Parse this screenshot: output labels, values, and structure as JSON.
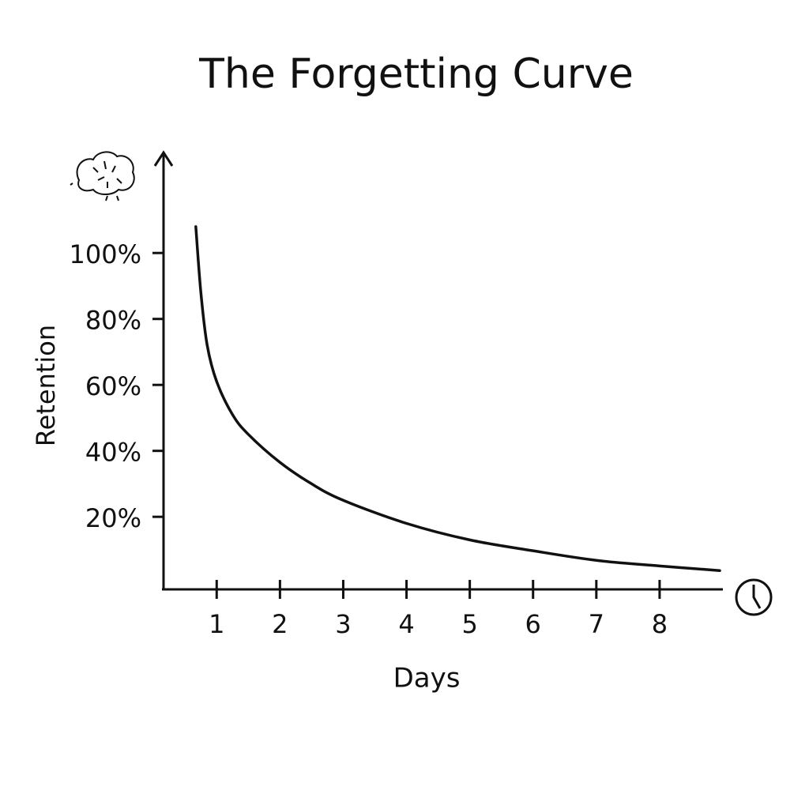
{
  "chart_data": {
    "type": "line",
    "title": "The Forgetting Curve",
    "x_label": "Days",
    "y_label": "Retention",
    "x": [
      0.67,
      0.75,
      0.85,
      1,
      1.25,
      1.5,
      2,
      2.5,
      3,
      4,
      5,
      6,
      7,
      8,
      8.95
    ],
    "values": [
      108,
      88,
      72,
      61,
      51,
      45,
      36.5,
      30,
      25,
      18,
      13,
      9.7,
      6.8,
      5.1,
      3.7
    ],
    "color": "#111111",
    "xlim": [
      0.16,
      9
    ],
    "ylim": [
      -2,
      130
    ],
    "xticks": [
      1,
      2,
      3,
      4,
      5,
      6,
      7,
      8
    ],
    "yticks": [
      {
        "value": 20,
        "label": "20%"
      },
      {
        "value": 40,
        "label": "40%"
      },
      {
        "value": 60,
        "label": "60%"
      },
      {
        "value": 80,
        "label": "80%"
      },
      {
        "value": 100,
        "label": "100%"
      }
    ]
  }
}
